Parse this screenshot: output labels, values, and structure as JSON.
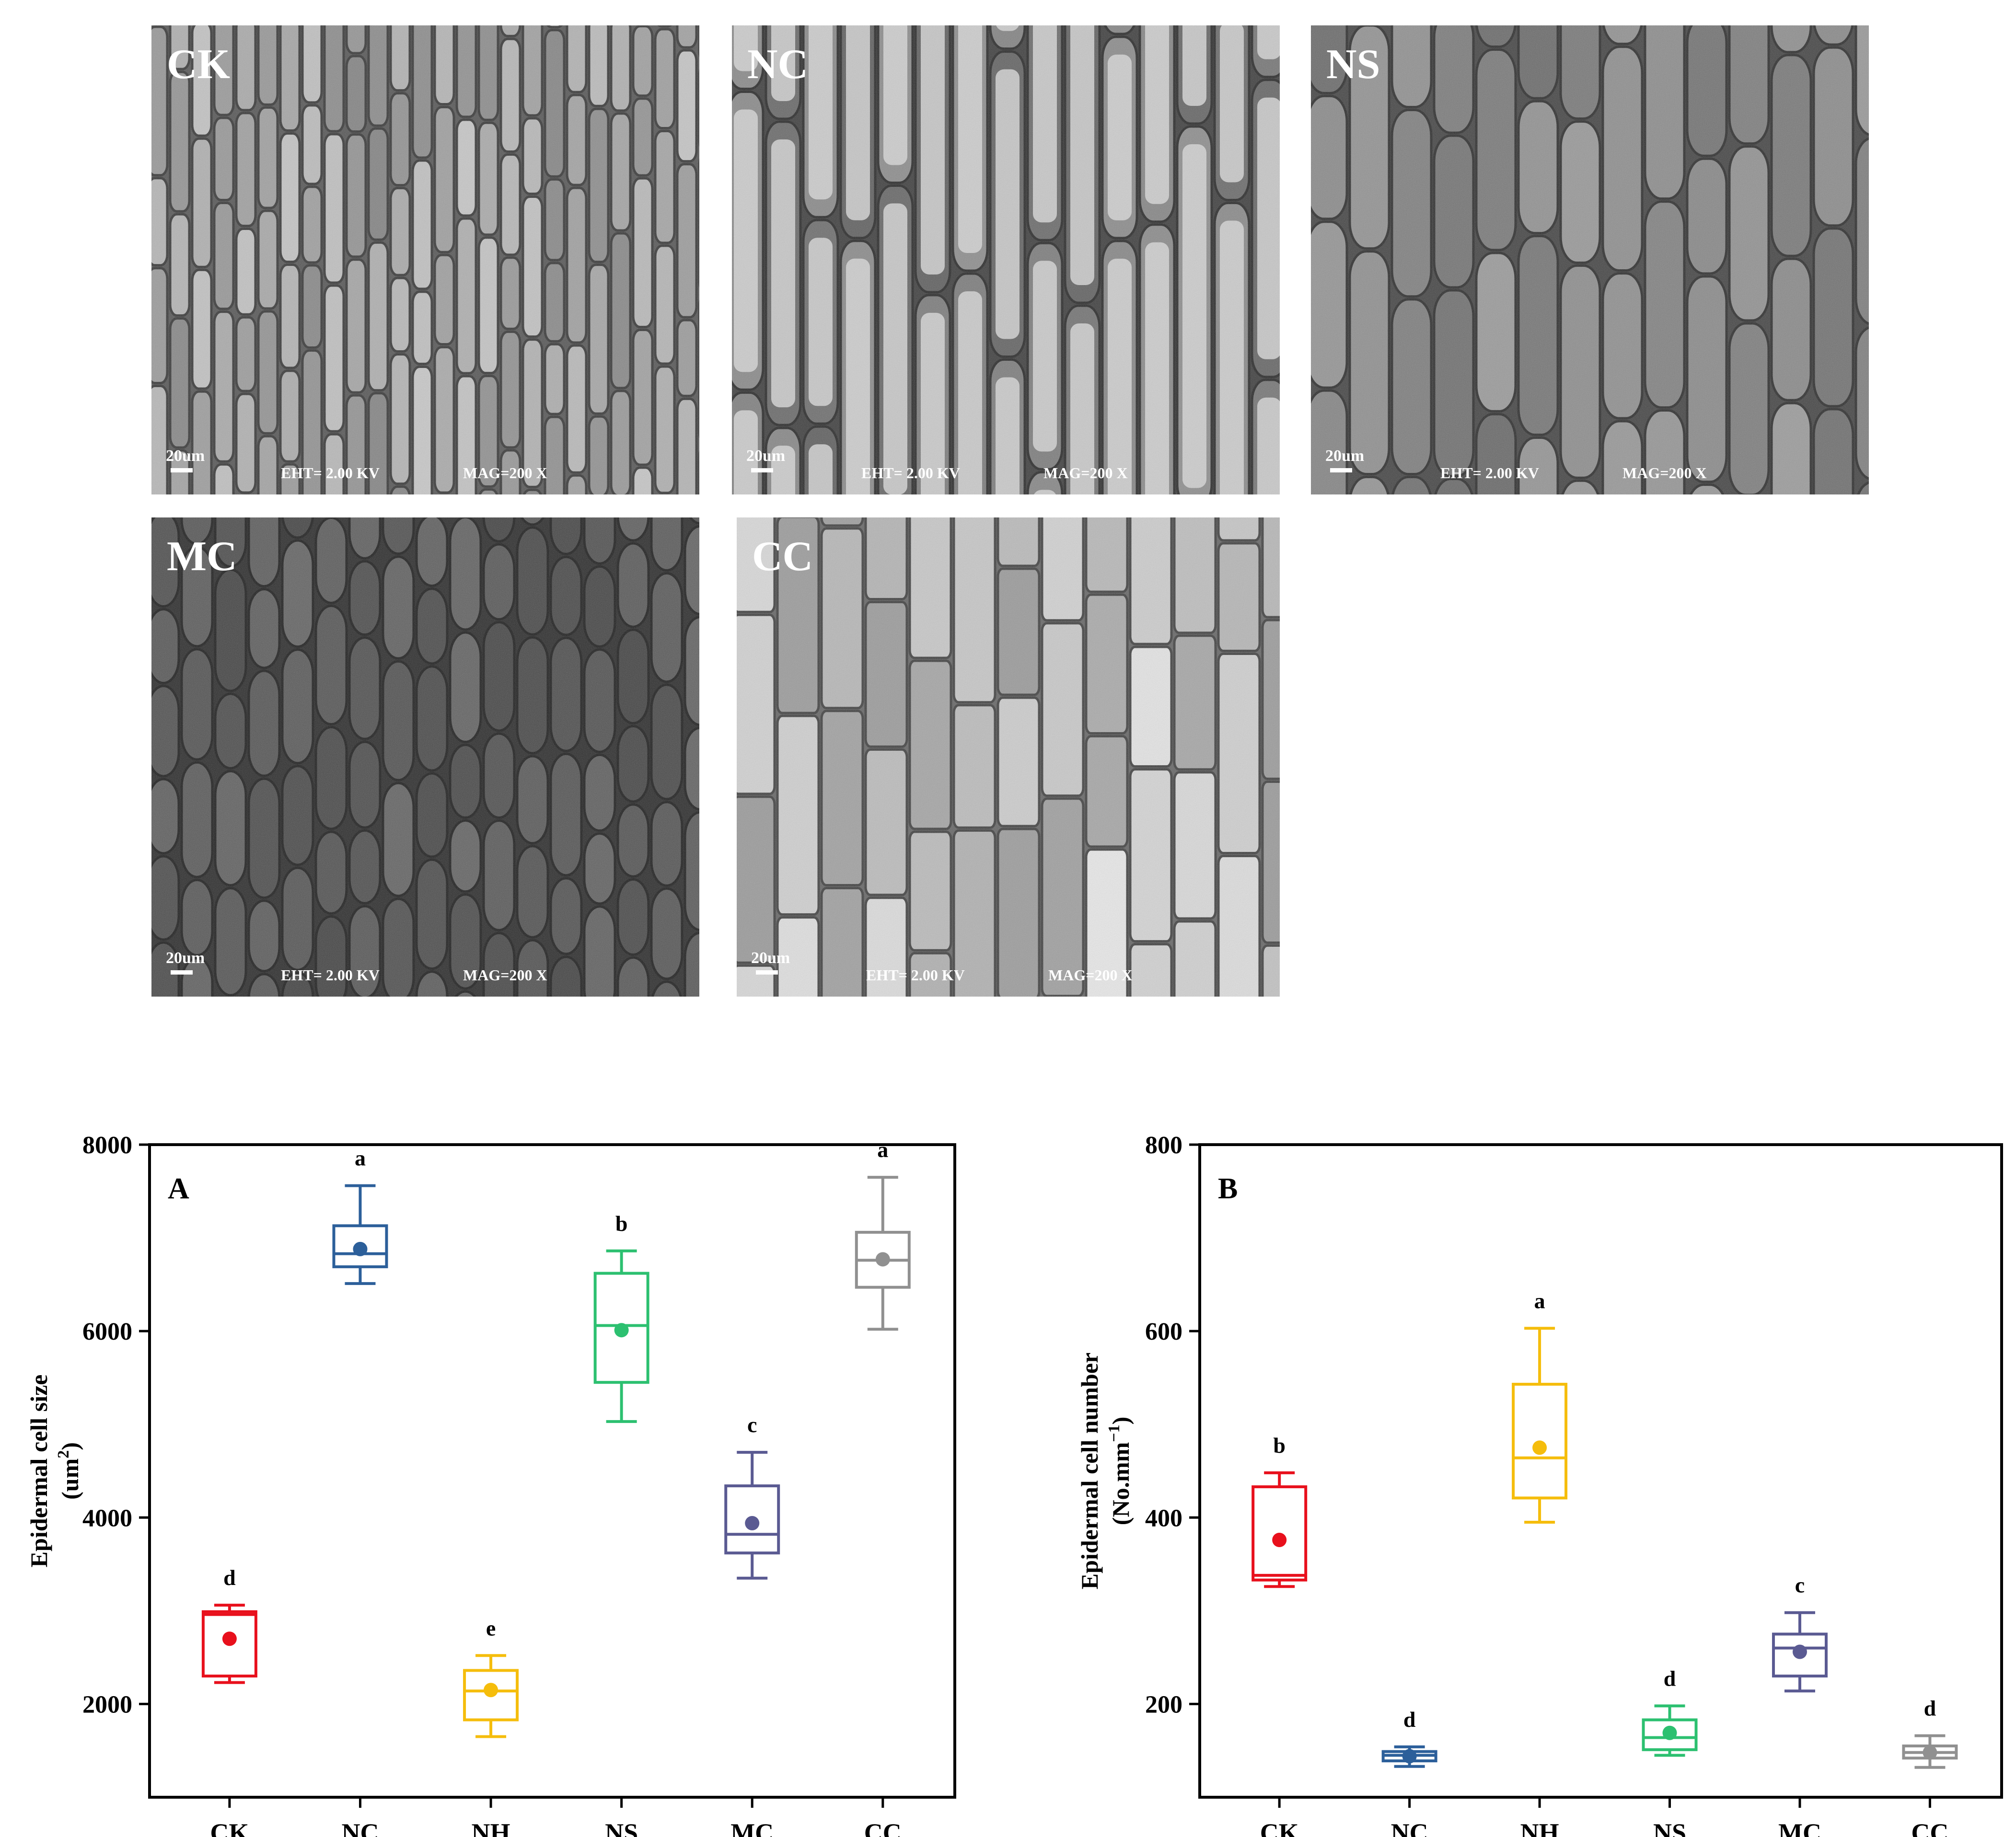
{
  "micrographs": [
    {
      "id": "CK",
      "label": "CK",
      "scale_text": "20um",
      "eht_text": "EHT= 2.00 KV",
      "mag_text": "MAG=200 X",
      "tone": "#9a9a9a",
      "cell_style": "narrow"
    },
    {
      "id": "NC",
      "label": "NC",
      "scale_text": "20um",
      "eht_text": "EHT= 2.00 KV",
      "mag_text": "MAG=200 X",
      "tone": "#6e6e6e",
      "cell_style": "long"
    },
    {
      "id": "NS",
      "label": "NS",
      "scale_text": "20um",
      "eht_text": "EHT= 2.00 KV",
      "mag_text": "MAG=200 X",
      "tone": "#7a7a7a",
      "cell_style": "medium"
    },
    {
      "id": "MC",
      "label": "MC",
      "scale_text": "20um",
      "eht_text": "EHT= 2.00 KV",
      "mag_text": "MAG=200 X",
      "tone": "#4c4c4c",
      "cell_style": "oval"
    },
    {
      "id": "CC",
      "label": "CC",
      "scale_text": "20um",
      "eht_text": "EHT= 2.00 KV",
      "mag_text": "MAG=200 X",
      "tone": "#b5b5b5",
      "cell_style": "wide"
    }
  ],
  "chart_data": [
    {
      "type": "box",
      "panel_label": "A",
      "ylabel": "Epidermal cell size",
      "ylabel_unit_base": "(um",
      "ylabel_unit_sup": "2",
      "ylabel_unit_end": ")",
      "categories": [
        "CK",
        "NC",
        "NH",
        "NS",
        "MC",
        "CC"
      ],
      "ylim": [
        1000,
        8000
      ],
      "yticks": [
        2000,
        4000,
        6000,
        8000
      ],
      "boxes": [
        {
          "name": "CK",
          "color": "#e8101c",
          "min": 2230,
          "q1": 2300,
          "median": 2960,
          "q3": 2990,
          "max": 3060,
          "mean": 2700,
          "letter": "d"
        },
        {
          "name": "NC",
          "color": "#2c5f9a",
          "min": 6510,
          "q1": 6690,
          "median": 6830,
          "q3": 7130,
          "max": 7560,
          "mean": 6880,
          "letter": "a"
        },
        {
          "name": "NH",
          "color": "#f5bd0c",
          "min": 1650,
          "q1": 1830,
          "median": 2140,
          "q3": 2360,
          "max": 2520,
          "mean": 2150,
          "letter": "e"
        },
        {
          "name": "NS",
          "color": "#2cc070",
          "min": 5030,
          "q1": 5450,
          "median": 6060,
          "q3": 6620,
          "max": 6860,
          "mean": 6010,
          "letter": "b"
        },
        {
          "name": "MC",
          "color": "#5a5a92",
          "min": 3350,
          "q1": 3620,
          "median": 3820,
          "q3": 4340,
          "max": 4700,
          "mean": 3940,
          "letter": "c"
        },
        {
          "name": "CC",
          "color": "#909090",
          "min": 6020,
          "q1": 6470,
          "median": 6760,
          "q3": 7060,
          "max": 7650,
          "mean": 6770,
          "letter": "a"
        }
      ]
    },
    {
      "type": "box",
      "panel_label": "B",
      "ylabel": "Epidermal cell number",
      "ylabel_unit_base": "(No.mm",
      "ylabel_unit_sup": "−1",
      "ylabel_unit_end": ")",
      "categories": [
        "CK",
        "NC",
        "NH",
        "NS",
        "MC",
        "CC"
      ],
      "ylim": [
        100,
        800
      ],
      "yticks": [
        200,
        400,
        600,
        800
      ],
      "boxes": [
        {
          "name": "CK",
          "color": "#e8101c",
          "min": 326,
          "q1": 333,
          "median": 338,
          "q3": 433,
          "max": 448,
          "mean": 376,
          "letter": "b"
        },
        {
          "name": "NC",
          "color": "#2c5f9a",
          "min": 133,
          "q1": 139,
          "median": 145,
          "q3": 149,
          "max": 154,
          "mean": 144,
          "letter": "d"
        },
        {
          "name": "NH",
          "color": "#f5bd0c",
          "min": 395,
          "q1": 421,
          "median": 464,
          "q3": 543,
          "max": 603,
          "mean": 475,
          "letter": "a"
        },
        {
          "name": "NS",
          "color": "#2cc070",
          "min": 145,
          "q1": 151,
          "median": 164,
          "q3": 183,
          "max": 198,
          "mean": 169,
          "letter": "d"
        },
        {
          "name": "MC",
          "color": "#5a5a92",
          "min": 214,
          "q1": 230,
          "median": 260,
          "q3": 275,
          "max": 298,
          "mean": 256,
          "letter": "c"
        },
        {
          "name": "CC",
          "color": "#909090",
          "min": 132,
          "q1": 142,
          "median": 148,
          "q3": 155,
          "max": 166,
          "mean": 148,
          "letter": "d"
        }
      ]
    }
  ]
}
